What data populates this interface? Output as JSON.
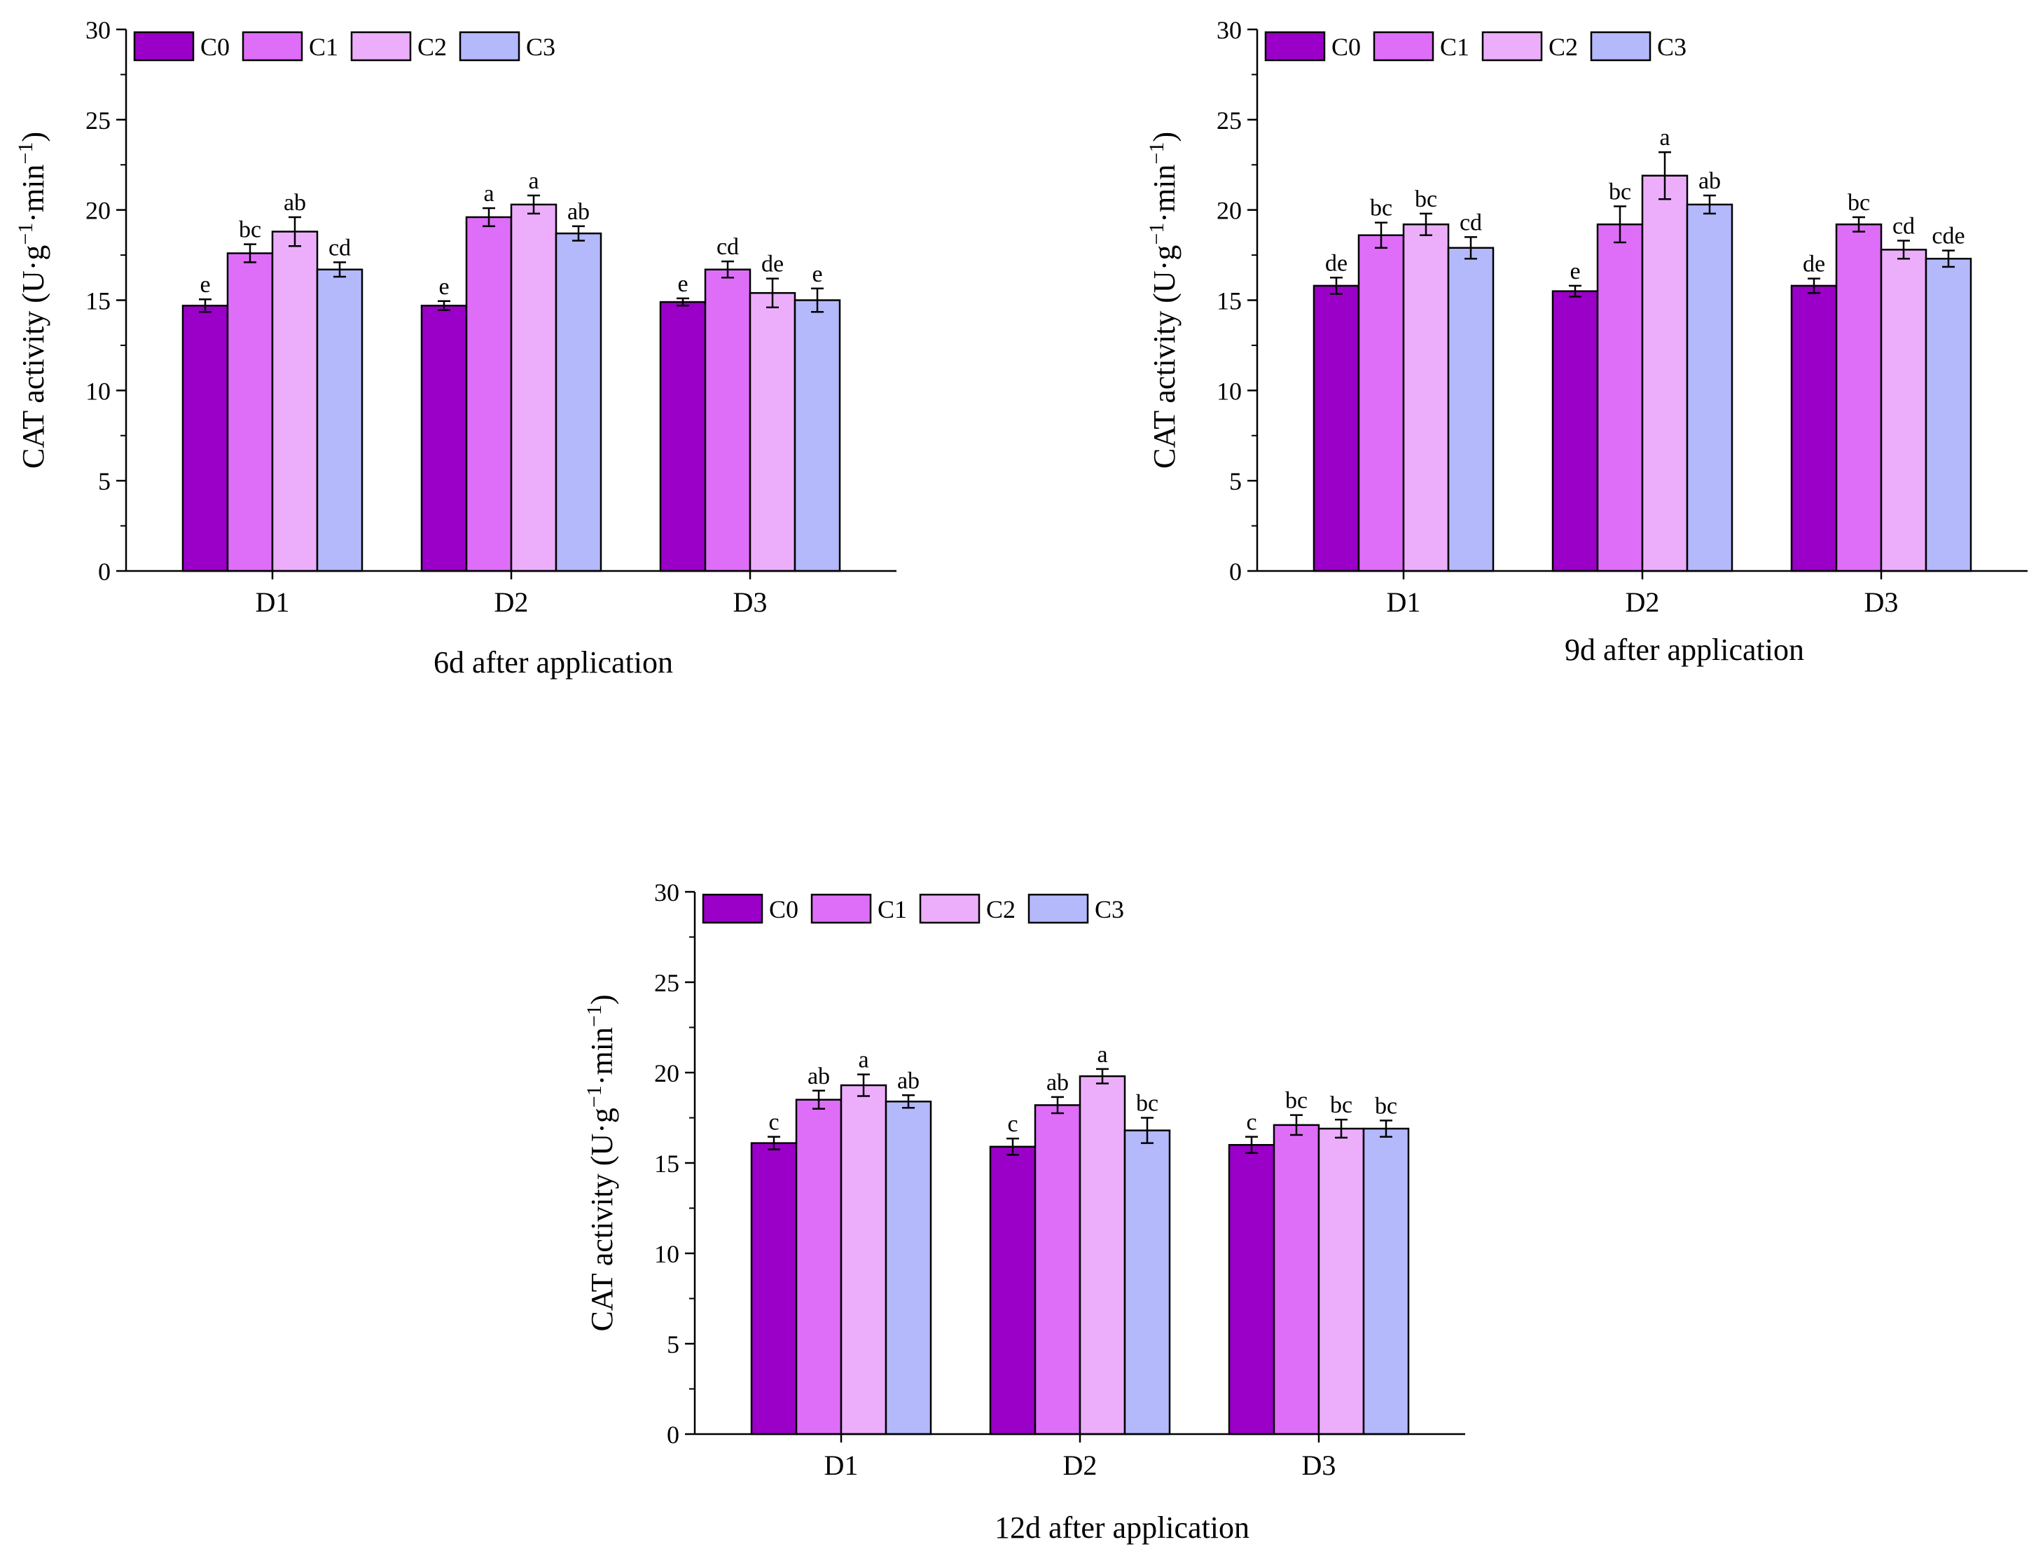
{
  "figure": {
    "y_axis_label_main": "CAT activity (U·g",
    "y_axis_label_sup1": "−1",
    "y_axis_label_mid": "·min",
    "y_axis_label_sup2": "−1",
    "y_axis_label_end": ")"
  },
  "series_colors": {
    "C0": "#9b00c8",
    "C1": "#de6ef8",
    "C2": "#ecaefa",
    "C3": "#b4b9fc"
  },
  "chart_data": [
    {
      "type": "bar",
      "title": "6d after application",
      "xlabel": "",
      "ylabel": "CAT activity (U·g−1·min−1)",
      "ylim": [
        0,
        30
      ],
      "yticks": [
        "0",
        "5",
        "10",
        "15",
        "20",
        "25",
        "30"
      ],
      "categories": [
        "D1",
        "D2",
        "D3"
      ],
      "legend": [
        "C0",
        "C1",
        "C2",
        "C3"
      ],
      "legend_position": "top-left",
      "series": [
        {
          "name": "C0",
          "values": [
            14.7,
            14.7,
            14.9
          ],
          "errors": [
            0.35,
            0.25,
            0.2
          ],
          "labels": [
            "e",
            "e",
            "e"
          ]
        },
        {
          "name": "C1",
          "values": [
            17.6,
            19.6,
            16.7
          ],
          "errors": [
            0.5,
            0.5,
            0.45
          ],
          "labels": [
            "bc",
            "a",
            "cd"
          ]
        },
        {
          "name": "C2",
          "values": [
            18.8,
            20.3,
            15.4
          ],
          "errors": [
            0.8,
            0.5,
            0.8
          ],
          "labels": [
            "ab",
            "a",
            "de"
          ]
        },
        {
          "name": "C3",
          "values": [
            16.7,
            18.7,
            15.0
          ],
          "errors": [
            0.4,
            0.4,
            0.65
          ],
          "labels": [
            "cd",
            "ab",
            "e"
          ]
        }
      ]
    },
    {
      "type": "bar",
      "title": "9d after application",
      "xlabel": "",
      "ylabel": "CAT activity (U·g−1·min−1)",
      "ylim": [
        0,
        30
      ],
      "yticks": [
        "0",
        "5",
        "10",
        "15",
        "20",
        "25",
        "30"
      ],
      "categories": [
        "D1",
        "D2",
        "D3"
      ],
      "legend": [
        "C0",
        "C1",
        "C2",
        "C3"
      ],
      "legend_position": "top-left",
      "series": [
        {
          "name": "C0",
          "values": [
            15.8,
            15.5,
            15.8
          ],
          "errors": [
            0.45,
            0.3,
            0.4
          ],
          "labels": [
            "de",
            "e",
            "de"
          ]
        },
        {
          "name": "C1",
          "values": [
            18.6,
            19.2,
            19.2
          ],
          "errors": [
            0.7,
            1.0,
            0.4
          ],
          "labels": [
            "bc",
            "bc",
            "bc"
          ]
        },
        {
          "name": "C2",
          "values": [
            19.2,
            21.9,
            17.8
          ],
          "errors": [
            0.6,
            1.3,
            0.5
          ],
          "labels": [
            "bc",
            "a",
            "cd"
          ]
        },
        {
          "name": "C3",
          "values": [
            17.9,
            20.3,
            17.3
          ],
          "errors": [
            0.6,
            0.5,
            0.45
          ],
          "labels": [
            "cd",
            "ab",
            "cde"
          ]
        }
      ]
    },
    {
      "type": "bar",
      "title": "12d after application",
      "xlabel": "",
      "ylabel": "CAT activity (U·g−1·min−1)",
      "ylim": [
        0,
        30
      ],
      "yticks": [
        "0",
        "5",
        "10",
        "15",
        "20",
        "25",
        "30"
      ],
      "categories": [
        "D1",
        "D2",
        "D3"
      ],
      "legend": [
        "C0",
        "C1",
        "C2",
        "C3"
      ],
      "legend_position": "top-left",
      "series": [
        {
          "name": "C0",
          "values": [
            16.1,
            15.9,
            16.0
          ],
          "errors": [
            0.35,
            0.45,
            0.45
          ],
          "labels": [
            "c",
            "c",
            "c"
          ]
        },
        {
          "name": "C1",
          "values": [
            18.5,
            18.2,
            17.1
          ],
          "errors": [
            0.5,
            0.45,
            0.55
          ],
          "labels": [
            "ab",
            "ab",
            "bc"
          ]
        },
        {
          "name": "C2",
          "values": [
            19.3,
            19.8,
            16.9
          ],
          "errors": [
            0.6,
            0.4,
            0.5
          ],
          "labels": [
            "a",
            "a",
            "bc"
          ]
        },
        {
          "name": "C3",
          "values": [
            18.4,
            16.8,
            16.9
          ],
          "errors": [
            0.35,
            0.7,
            0.45
          ],
          "labels": [
            "ab",
            "bc",
            "bc"
          ]
        }
      ]
    }
  ]
}
